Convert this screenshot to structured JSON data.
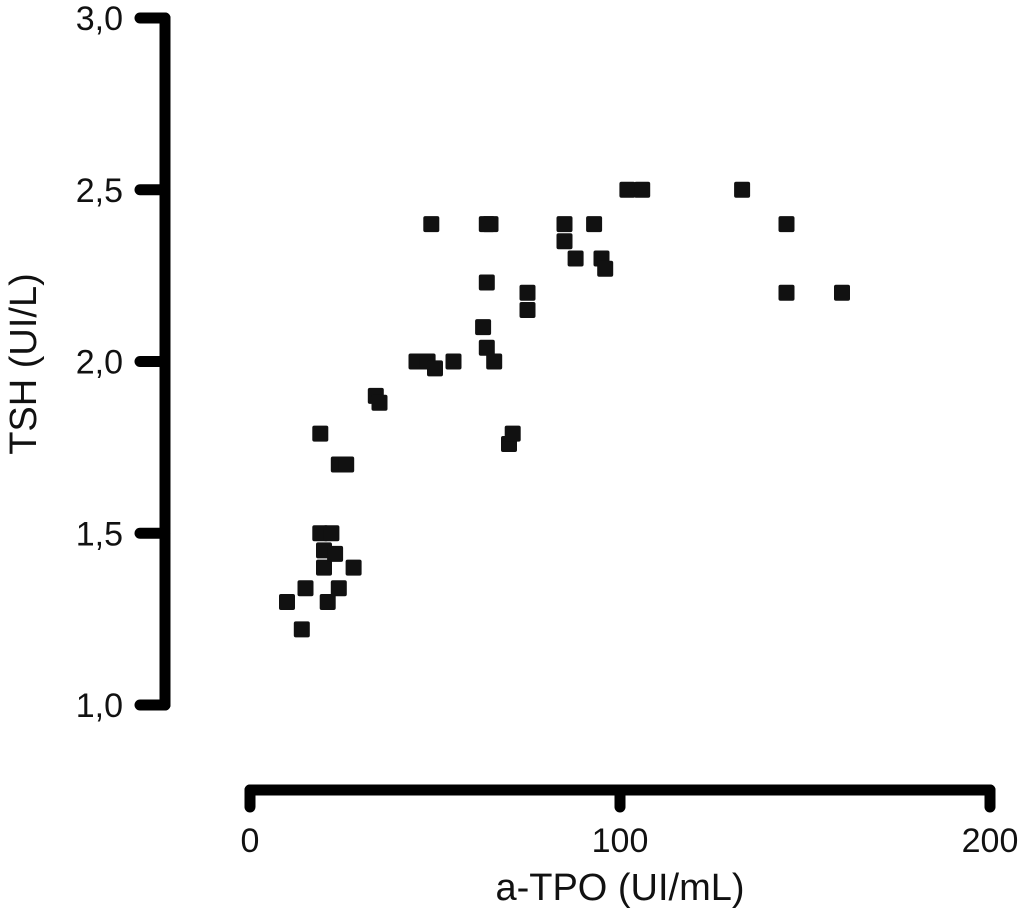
{
  "chart_data": {
    "type": "scatter",
    "xlabel": "a-TPO (UI/mL)",
    "ylabel": "TSH (UI/L)",
    "xlim": [
      0,
      200
    ],
    "ylim": [
      1.0,
      3.0
    ],
    "x_ticks": [
      0,
      100,
      200
    ],
    "x_tick_labels": [
      "0",
      "100",
      "200"
    ],
    "y_ticks": [
      1.0,
      1.5,
      2.0,
      2.5,
      3.0
    ],
    "y_tick_labels": [
      "1,0",
      "1,5",
      "2,0",
      "2,5",
      "3,0"
    ],
    "grid": false,
    "legend": "none",
    "point_color": "#111111",
    "series": [
      {
        "points": [
          [
            10,
            1.3
          ],
          [
            14,
            1.22
          ],
          [
            15,
            1.34
          ],
          [
            19,
            1.79
          ],
          [
            19,
            1.5
          ],
          [
            20,
            1.45
          ],
          [
            20,
            1.4
          ],
          [
            21,
            1.3
          ],
          [
            22,
            1.5
          ],
          [
            23,
            1.44
          ],
          [
            24,
            1.34
          ],
          [
            24,
            1.7
          ],
          [
            26,
            1.7
          ],
          [
            28,
            1.4
          ],
          [
            34,
            1.9
          ],
          [
            35,
            1.88
          ],
          [
            45,
            2.0
          ],
          [
            48,
            2.0
          ],
          [
            49,
            2.4
          ],
          [
            50,
            1.98
          ],
          [
            55,
            2.0
          ],
          [
            63,
            2.1
          ],
          [
            64,
            2.23
          ],
          [
            64,
            2.04
          ],
          [
            64,
            2.4
          ],
          [
            65,
            2.4
          ],
          [
            66,
            2.0
          ],
          [
            70,
            1.76
          ],
          [
            71,
            1.79
          ],
          [
            75,
            2.2
          ],
          [
            75,
            2.15
          ],
          [
            85,
            2.4
          ],
          [
            85,
            2.35
          ],
          [
            88,
            2.3
          ],
          [
            93,
            2.4
          ],
          [
            95,
            2.3
          ],
          [
            96,
            2.27
          ],
          [
            102,
            2.5
          ],
          [
            106,
            2.5
          ],
          [
            133,
            2.5
          ],
          [
            145,
            2.4
          ],
          [
            145,
            2.2
          ],
          [
            160,
            2.2
          ]
        ]
      }
    ]
  }
}
